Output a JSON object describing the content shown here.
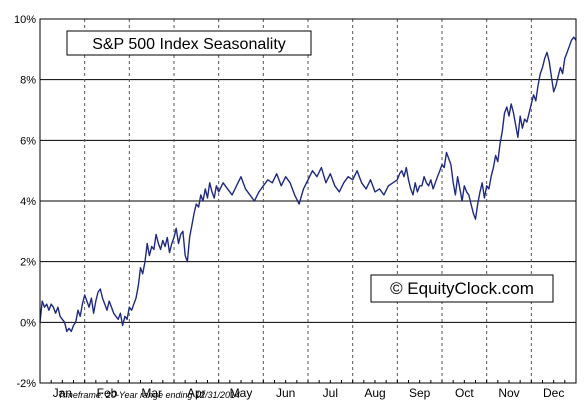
{
  "chart_data": {
    "type": "line",
    "title": "S&P 500 Index Seasonality",
    "watermark": "© EquityClock.com",
    "footnote": "Timeframe: 20-Year range ending 12/31/2014",
    "xlabel": "",
    "ylabel": "",
    "ylim": [
      -2,
      10
    ],
    "y_ticks": [
      "10%",
      "8%",
      "6%",
      "4%",
      "2%",
      "0%",
      "-2%"
    ],
    "y_tick_values": [
      10,
      8,
      6,
      4,
      2,
      0,
      -2
    ],
    "categories": [
      "Jan",
      "Feb",
      "Mar",
      "Apr",
      "May",
      "Jun",
      "Jul",
      "Aug",
      "Sep",
      "Oct",
      "Nov",
      "Dec"
    ],
    "grid": {
      "horizontal": true,
      "vertical_dashed": true
    },
    "line_color": "#1f2a80",
    "series": [
      {
        "name": "",
        "x": [
          0.0,
          0.05,
          0.1,
          0.15,
          0.2,
          0.25,
          0.3,
          0.35,
          0.4,
          0.45,
          0.5,
          0.55,
          0.6,
          0.65,
          0.7,
          0.75,
          0.8,
          0.85,
          0.9,
          0.95,
          1.0,
          1.05,
          1.1,
          1.15,
          1.2,
          1.25,
          1.3,
          1.35,
          1.4,
          1.45,
          1.5,
          1.55,
          1.6,
          1.65,
          1.7,
          1.75,
          1.8,
          1.85,
          1.9,
          1.95,
          2.0,
          2.05,
          2.1,
          2.15,
          2.2,
          2.25,
          2.3,
          2.35,
          2.4,
          2.45,
          2.5,
          2.55,
          2.6,
          2.65,
          2.7,
          2.75,
          2.8,
          2.85,
          2.9,
          2.95,
          3.0,
          3.05,
          3.1,
          3.15,
          3.2,
          3.25,
          3.3,
          3.35,
          3.4,
          3.45,
          3.5,
          3.55,
          3.6,
          3.65,
          3.7,
          3.75,
          3.8,
          3.85,
          3.9,
          3.95,
          4.0,
          4.1,
          4.2,
          4.3,
          4.4,
          4.5,
          4.6,
          4.7,
          4.8,
          4.9,
          5.0,
          5.1,
          5.2,
          5.3,
          5.4,
          5.5,
          5.6,
          5.7,
          5.8,
          5.9,
          6.0,
          6.1,
          6.2,
          6.3,
          6.4,
          6.5,
          6.6,
          6.7,
          6.8,
          6.9,
          7.0,
          7.1,
          7.2,
          7.3,
          7.4,
          7.5,
          7.6,
          7.7,
          7.8,
          7.9,
          8.0,
          8.05,
          8.1,
          8.15,
          8.2,
          8.25,
          8.3,
          8.35,
          8.4,
          8.45,
          8.5,
          8.55,
          8.6,
          8.65,
          8.7,
          8.75,
          8.8,
          8.85,
          8.9,
          8.95,
          9.0,
          9.05,
          9.1,
          9.15,
          9.2,
          9.25,
          9.3,
          9.35,
          9.4,
          9.45,
          9.5,
          9.55,
          9.6,
          9.65,
          9.7,
          9.75,
          9.8,
          9.85,
          9.9,
          9.95,
          10.0,
          10.05,
          10.1,
          10.15,
          10.2,
          10.25,
          10.3,
          10.35,
          10.4,
          10.45,
          10.5,
          10.55,
          10.6,
          10.65,
          10.7,
          10.75,
          10.8,
          10.85,
          10.9,
          10.95,
          11.0,
          11.05,
          11.1,
          11.15,
          11.2,
          11.25,
          11.3,
          11.35,
          11.4,
          11.45,
          11.5,
          11.55,
          11.6,
          11.65,
          11.7,
          11.75,
          11.8,
          11.85,
          11.9,
          11.95,
          12.0
        ],
        "values": [
          0.0,
          0.7,
          0.5,
          0.6,
          0.4,
          0.6,
          0.5,
          0.3,
          0.5,
          0.2,
          0.1,
          0.0,
          -0.3,
          -0.2,
          -0.3,
          -0.1,
          0.0,
          0.4,
          0.2,
          0.6,
          0.9,
          0.7,
          0.5,
          0.8,
          0.3,
          0.7,
          1.0,
          1.1,
          0.8,
          0.6,
          0.4,
          0.7,
          0.5,
          0.3,
          0.2,
          0.1,
          0.3,
          -0.1,
          0.2,
          0.1,
          0.5,
          0.4,
          0.6,
          0.8,
          1.2,
          1.8,
          1.6,
          2.0,
          2.6,
          2.2,
          2.5,
          2.4,
          2.9,
          2.6,
          2.4,
          2.7,
          2.5,
          2.8,
          2.3,
          2.6,
          2.8,
          3.1,
          2.6,
          2.9,
          3.0,
          2.2,
          2.0,
          2.8,
          3.2,
          3.6,
          3.9,
          3.8,
          4.2,
          4.0,
          4.4,
          4.1,
          4.6,
          4.3,
          4.1,
          4.5,
          4.3,
          4.6,
          4.4,
          4.2,
          4.5,
          4.8,
          4.4,
          4.2,
          4.0,
          4.3,
          4.5,
          4.7,
          4.6,
          4.9,
          4.5,
          4.8,
          4.6,
          4.2,
          3.9,
          4.4,
          4.7,
          5.0,
          4.8,
          5.1,
          4.6,
          4.9,
          4.5,
          4.3,
          4.6,
          4.8,
          4.7,
          5.0,
          4.6,
          4.4,
          4.7,
          4.3,
          4.4,
          4.2,
          4.5,
          4.6,
          4.7,
          4.9,
          5.0,
          4.8,
          5.1,
          4.7,
          4.4,
          4.2,
          4.6,
          4.3,
          4.5,
          4.5,
          4.8,
          4.6,
          4.5,
          4.7,
          4.4,
          4.6,
          4.8,
          5.0,
          5.2,
          5.1,
          5.6,
          5.4,
          5.2,
          4.6,
          4.2,
          4.8,
          4.4,
          4.0,
          4.5,
          4.3,
          4.2,
          3.9,
          3.6,
          3.4,
          3.9,
          4.3,
          4.6,
          4.1,
          4.5,
          4.4,
          4.8,
          5.1,
          5.5,
          5.3,
          5.9,
          6.3,
          6.9,
          7.1,
          6.8,
          7.2,
          6.9,
          6.5,
          6.1,
          6.8,
          6.4,
          6.7,
          6.6,
          6.9,
          7.2,
          7.5,
          7.3,
          7.8,
          8.2,
          8.4,
          8.7,
          8.9,
          8.6,
          8.1,
          7.6,
          7.8,
          8.1,
          8.4,
          8.2,
          8.7,
          8.9,
          9.1,
          9.3,
          9.4,
          9.3
        ]
      }
    ]
  }
}
